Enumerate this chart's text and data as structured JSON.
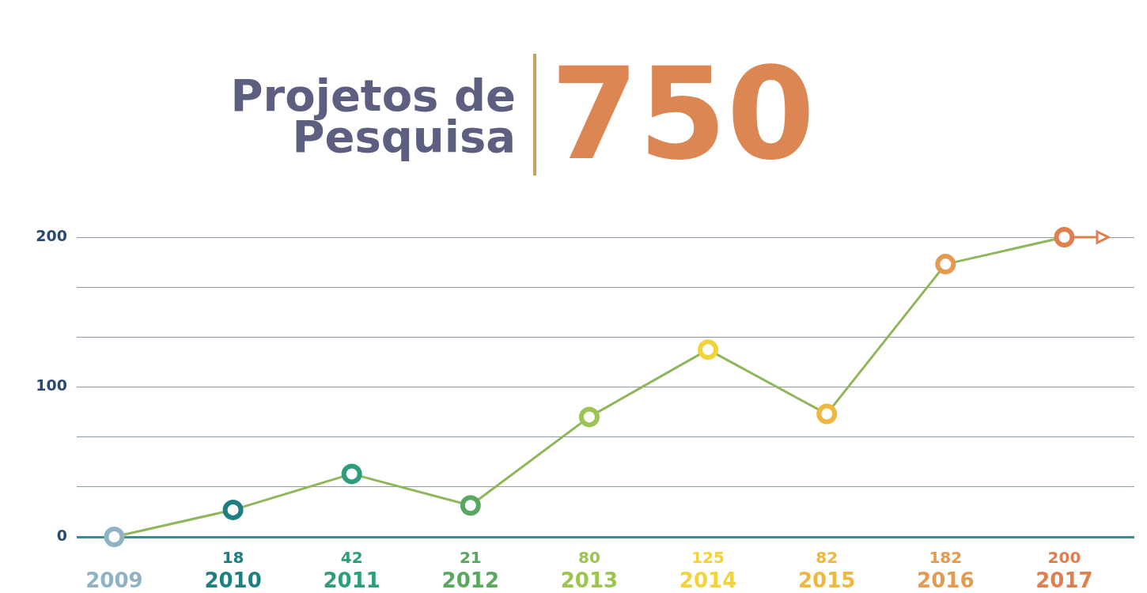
{
  "chart_data": {
    "type": "line",
    "title": "Projetos de Pesquisa",
    "subtitle": "750",
    "categories": [
      "2009",
      "2010",
      "2011",
      "2012",
      "2013",
      "2014",
      "2015",
      "2016",
      "2017"
    ],
    "values": [
      0,
      18,
      42,
      21,
      80,
      125,
      82,
      182,
      200
    ],
    "colors": [
      "#8fb3c4",
      "#1f7f80",
      "#2e9e7a",
      "#5aa860",
      "#9cc453",
      "#f2d43a",
      "#eeb840",
      "#e49a50",
      "#e07e50"
    ],
    "color": "#8fb65a",
    "value_labels": [
      null,
      "18",
      "42",
      "21",
      "80",
      "125",
      "82",
      "182",
      "200"
    ],
    "ylim": [
      0,
      200
    ],
    "yticks": [
      0,
      {
        "value": 33.3,
        "label": null
      },
      {
        "value": 66.7,
        "label": null
      },
      100,
      {
        "value": 133.3,
        "label": null
      },
      {
        "value": 166.7,
        "label": null
      },
      200
    ],
    "grid": "y",
    "legend": false,
    "marker": "circle"
  }
}
